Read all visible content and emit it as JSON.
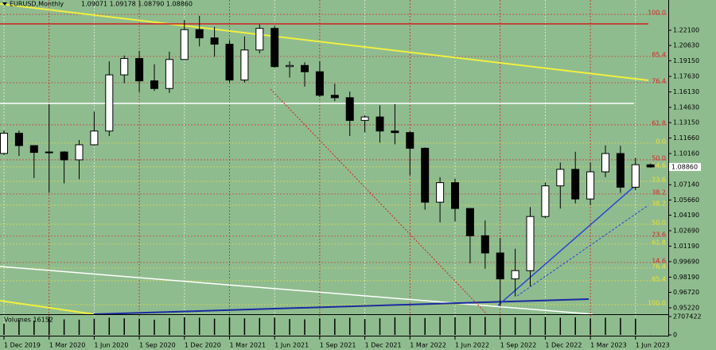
{
  "chart_data": [
    {
      "type": "candlestick",
      "title": "EURUSD,Monthly",
      "ohlc_label": "1.09071 1.09178 1.08790 1.08860",
      "background": "#8fbc8f",
      "up_color": "#ffffff",
      "down_color": "#000000",
      "categories": [
        "1 Dec 2019",
        null,
        null,
        "1 Mar 2020",
        null,
        null,
        "1 Jun 2020",
        null,
        null,
        "1 Sep 2020",
        null,
        null,
        "1 Dec 2020",
        null,
        null,
        "1 Mar 2021",
        null,
        null,
        "1 Jun 2021",
        null,
        null,
        "1 Sep 2021",
        null,
        null,
        "1 Dec 2021",
        null,
        null,
        "1 Mar 2022",
        null,
        null,
        "1 Jun 2022",
        null,
        null,
        "1 Sep 2022",
        null,
        null,
        "1 Dec 2022",
        null,
        null,
        "1 Mar 2023",
        null,
        null,
        "1 Jun 2023",
        null
      ],
      "open": [
        1.1017,
        1.1213,
        1.1093,
        1.1027,
        1.1031,
        1.0955,
        1.1101,
        1.1234,
        1.1778,
        1.1936,
        1.172,
        1.1646,
        1.1927,
        1.2216,
        1.2136,
        1.2075,
        1.1728,
        1.2019,
        1.2228,
        1.1858,
        1.1869,
        1.1808,
        1.158,
        1.1557,
        1.1337,
        1.137,
        1.1234,
        1.1219,
        1.1067,
        1.0545,
        1.0734,
        1.0484,
        1.022,
        1.0053,
        0.9802,
        0.9882,
        1.0406,
        1.0703,
        1.0863,
        1.0576,
        1.0839,
        1.1016,
        1.069,
        1.09071
      ],
      "high": [
        1.1239,
        1.1239,
        1.1096,
        1.1495,
        1.1039,
        1.1147,
        1.1422,
        1.1909,
        1.1966,
        1.2011,
        1.1881,
        1.2003,
        1.231,
        1.235,
        1.2243,
        1.2113,
        1.215,
        1.2266,
        1.2254,
        1.1909,
        1.19,
        1.1909,
        1.1692,
        1.1616,
        1.1386,
        1.1483,
        1.1495,
        1.1233,
        1.1076,
        1.0787,
        1.0773,
        1.0486,
        1.0368,
        1.0198,
        1.0094,
        1.0497,
        1.0736,
        1.0929,
        1.1033,
        1.093,
        1.1095,
        1.1092,
        1.0975,
        1.09178
      ],
      "low": [
        1.1003,
        1.0992,
        1.0778,
        1.0636,
        1.0727,
        1.0767,
        1.1095,
        1.1185,
        1.1696,
        1.1612,
        1.1622,
        1.1603,
        1.1924,
        1.2054,
        1.1952,
        1.1704,
        1.1704,
        1.1986,
        1.1847,
        1.1752,
        1.1664,
        1.1563,
        1.1524,
        1.1186,
        1.1222,
        1.1121,
        1.1106,
        1.0806,
        1.0471,
        1.0349,
        1.0359,
        0.9952,
        0.9901,
        0.9536,
        0.9632,
        0.973,
        1.0392,
        1.0483,
        1.0533,
        1.0516,
        1.0788,
        1.0635,
        1.0662,
        1.0879
      ],
      "close": [
        1.1213,
        1.1093,
        1.1027,
        1.1031,
        1.0955,
        1.1101,
        1.1234,
        1.1778,
        1.1936,
        1.172,
        1.1646,
        1.1927,
        1.2216,
        1.2136,
        1.2075,
        1.1728,
        1.2019,
        1.2228,
        1.1858,
        1.1869,
        1.1808,
        1.158,
        1.1557,
        1.1337,
        1.137,
        1.1234,
        1.1219,
        1.1067,
        1.0545,
        1.0734,
        1.0484,
        1.022,
        1.0053,
        0.9802,
        0.9882,
        1.0406,
        1.0703,
        1.0863,
        1.0576,
        1.0839,
        1.1016,
        1.069,
        1.0908,
        1.0886
      ],
      "ylim": [
        0.946,
        1.2503
      ],
      "yticks": [
        {
          "value": 1.221,
          "label": "1.22100"
        },
        {
          "value": 1.2063,
          "label": "1.20630"
        },
        {
          "value": 1.1915,
          "label": "1.19150"
        },
        {
          "value": 1.1763,
          "label": "1.17630"
        },
        {
          "value": 1.1613,
          "label": "1.16130"
        },
        {
          "value": 1.1463,
          "label": "1.14630"
        },
        {
          "value": 1.1315,
          "label": "1.13150"
        },
        {
          "value": 1.1166,
          "label": "1.11660"
        },
        {
          "value": 1.1016,
          "label": "1.10160"
        },
        {
          "value": 1.0714,
          "label": "1.07140"
        },
        {
          "value": 1.0566,
          "label": "1.05660"
        },
        {
          "value": 1.0419,
          "label": "1.04190"
        },
        {
          "value": 1.0269,
          "label": "1.02690"
        },
        {
          "value": 1.0119,
          "label": "1.01190"
        },
        {
          "value": 0.9969,
          "label": "0.99690"
        },
        {
          "value": 0.9819,
          "label": "0.98190"
        },
        {
          "value": 0.9672,
          "label": "0.96720"
        },
        {
          "value": 0.9522,
          "label": "0.95220"
        }
      ],
      "current_price": {
        "value": 1.0886,
        "label": "1.08860"
      },
      "levels": [
        {
          "label": "100.0",
          "value": 1.2364,
          "color": "#d02828"
        },
        {
          "label": "85.4",
          "value": 1.1956,
          "color": "#d02828"
        },
        {
          "label": "76.4",
          "value": 1.1702,
          "color": "#d02828"
        },
        {
          "label": "61.8",
          "value": 1.1294,
          "color": "#d02828"
        },
        {
          "label": "50.0",
          "value": 1.0955,
          "color": "#d02828"
        },
        {
          "label": "38.2",
          "value": 1.0624,
          "color": "#d02828"
        },
        {
          "label": "23.6",
          "value": 1.0216,
          "color": "#d02828"
        },
        {
          "label": "14.6",
          "value": 0.9961,
          "color": "#d02828"
        },
        {
          "label": "0.0",
          "value": 1.1117,
          "color": "#e8e040"
        },
        {
          "label": "14.6",
          "value": 1.0886,
          "color": "#e8e040"
        },
        {
          "label": "23.6",
          "value": 1.0747,
          "color": "#e8e040"
        },
        {
          "label": "38.2",
          "value": 1.0516,
          "color": "#e8e040"
        },
        {
          "label": "50.0",
          "value": 1.0331,
          "color": "#e8e040"
        },
        {
          "label": "61.8",
          "value": 1.0139,
          "color": "#e8e040"
        },
        {
          "label": "76.4",
          "value": 0.9907,
          "color": "#e8e040"
        },
        {
          "label": "85.4",
          "value": 0.9784,
          "color": "#e8e040"
        },
        {
          "label": "100.0",
          "value": 0.9553,
          "color": "#e8e040"
        }
      ]
    },
    {
      "type": "bar",
      "title": "Volumes 16152",
      "color": "#000000",
      "values": [
        1650000,
        2200000,
        2100000,
        2650000,
        2300000,
        2250000,
        2400000,
        2550000,
        2450000,
        2350000,
        2250000,
        2500000,
        2600000,
        2550000,
        2400000,
        2600000,
        2450000,
        2500000,
        2550000,
        2350000,
        2300000,
        2450000,
        2400000,
        2550000,
        2350000,
        2450000,
        2600000,
        2650000,
        2500000,
        2650000,
        2600000,
        2700000,
        2650000,
        2550000,
        2600000,
        2500000,
        2650000,
        2550000,
        2600000,
        2450000,
        2550000,
        2500000,
        2400000,
        16152
      ],
      "ylim": [
        0,
        2707422
      ],
      "yticks": [
        0,
        2707422
      ]
    }
  ]
}
